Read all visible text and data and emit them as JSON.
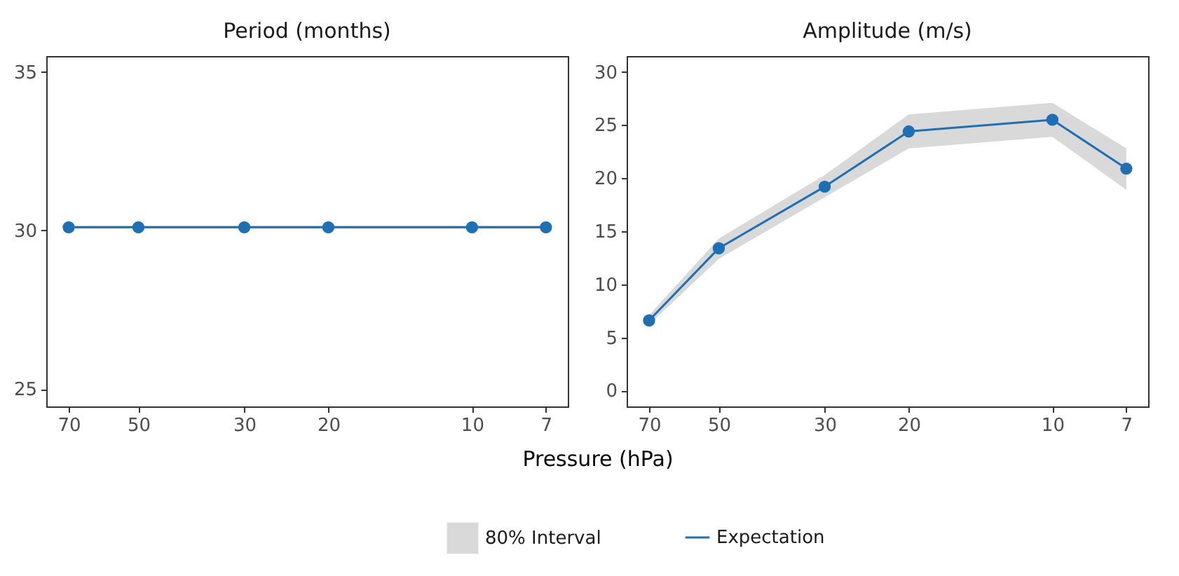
{
  "chart_data": [
    {
      "type": "line",
      "title": "Period (months)",
      "xlabel": "Pressure (hPa)",
      "annotations": [
        "80% Interval"
      ],
      "x": [
        70,
        50,
        30,
        20,
        10,
        7
      ],
      "log": "x",
      "xlim": [
        78,
        6.3
      ],
      "xticks": [
        70,
        50,
        30,
        20,
        10,
        7
      ],
      "ylim": [
        24.45,
        35.5
      ],
      "yticks": [
        25,
        30,
        35
      ],
      "legend": "bottom",
      "marker": "circle",
      "line_style": "solid",
      "series": [
        {
          "name": "Expectation",
          "color": "#1f6fb2",
          "values": [
            30.1,
            30.1,
            30.1,
            30.1,
            30.1,
            30.1
          ],
          "lower": [
            30.05,
            30.05,
            30.05,
            30.05,
            30.05,
            30.05
          ],
          "upper": [
            30.15,
            30.15,
            30.15,
            30.15,
            30.15,
            30.15
          ]
        }
      ]
    },
    {
      "type": "line",
      "title": "Amplitude (m/s)",
      "x": [
        70,
        50,
        30,
        20,
        10,
        7
      ],
      "log": "x",
      "xlim": [
        78,
        6.3
      ],
      "xticks": [
        70,
        50,
        30,
        20,
        10,
        7
      ],
      "ylim": [
        -1.5,
        31.5
      ],
      "yticks": [
        0,
        5,
        10,
        15,
        20,
        25,
        30
      ],
      "marker": "circle",
      "line_style": "solid",
      "series": [
        {
          "color": "#1f6fb2",
          "values": [
            6.6,
            13.4,
            19.2,
            24.4,
            25.5,
            20.9
          ],
          "lower": [
            6.2,
            12.4,
            18.2,
            22.8,
            23.9,
            18.9
          ],
          "upper": [
            7.1,
            14.3,
            20.3,
            26.0,
            27.1,
            22.8
          ]
        }
      ]
    }
  ]
}
